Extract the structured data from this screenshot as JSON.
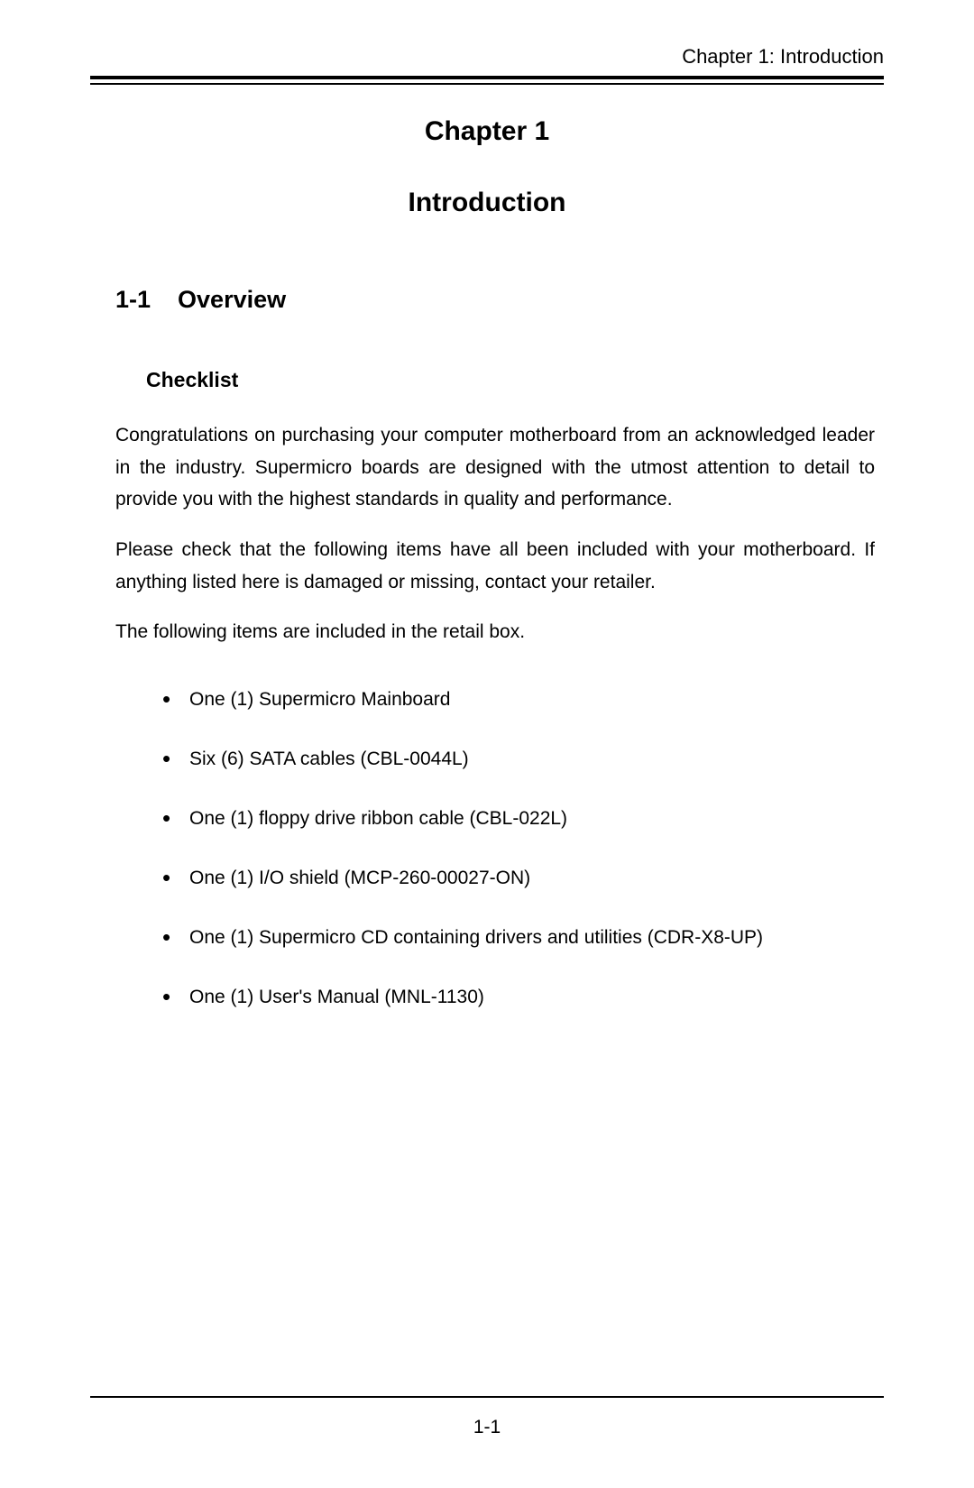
{
  "header": {
    "text": "Chapter 1: Introduction"
  },
  "chapter": {
    "label": "Chapter 1",
    "title": "Introduction"
  },
  "section": {
    "number": "1-1",
    "title": "Overview"
  },
  "subsection": {
    "title": "Checklist"
  },
  "paragraphs": {
    "p1": "Congratulations on purchasing your computer motherboard from an acknowledged leader in the industry. Supermicro boards are designed with the utmost attention to detail to provide you with the highest standards in quality and performance.",
    "p2": "Please check that the following items have all been included with your motherboard. If anything listed here is damaged or missing, contact your retailer.",
    "p3": "The following items are included in the retail box."
  },
  "checklist": {
    "items": [
      "One (1) Supermicro Mainboard",
      "Six (6) SATA cables (CBL-0044L)",
      "One (1) floppy drive ribbon cable (CBL-022L)",
      "One (1) I/O shield (MCP-260-00027-ON)",
      "One (1) Supermicro CD containing drivers and utilities (CDR-X8-UP)",
      "One (1) User's Manual (MNL-1130)"
    ]
  },
  "footer": {
    "page_number": "1-1"
  }
}
